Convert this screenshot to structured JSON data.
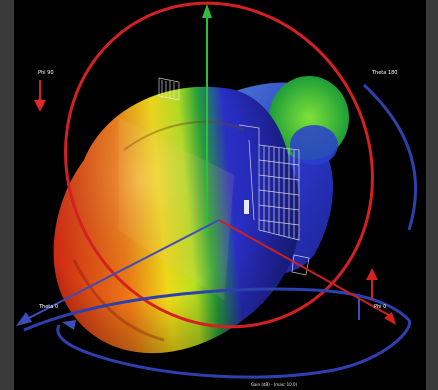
{
  "viewport": {
    "background": "#000000",
    "frame_color": "#3a3a3a"
  },
  "axis_labels": {
    "phi_90": "Phi 90",
    "theta_180": "Theta 180",
    "theta_0": "Theta 0",
    "phi_0": "Phi 0"
  },
  "caption": "Gain (dB) - (max: 10.0)",
  "colors": {
    "phi_ring": "#d42020",
    "theta_ring": "#2e3fae",
    "z_axis": "#2bbf3c",
    "lobe_high": "#d62a10",
    "lobe_mid": "#f3e214",
    "lobe_low": "#2a2fc8"
  },
  "icons": [
    "phi-marker-icon",
    "theta-marker-icon",
    "z-axis-arrow-icon",
    "x-axis-arrow-icon",
    "y-axis-arrow-icon"
  ]
}
